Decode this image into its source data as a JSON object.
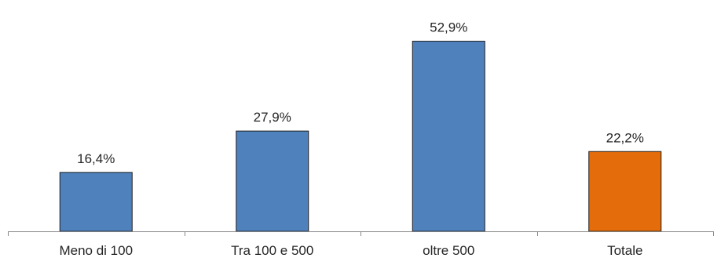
{
  "chart_data": {
    "type": "bar",
    "title": "",
    "xlabel": "",
    "ylabel": "",
    "categories": [
      "Meno di 100",
      "Tra 100 e 500",
      "oltre 500",
      "Totale"
    ],
    "values": [
      16.4,
      27.9,
      52.9,
      22.2
    ],
    "value_labels": [
      "16,4%",
      "27,9%",
      "52,9%",
      "22,2%"
    ],
    "bar_colors": [
      "#4f81bd",
      "#4f81bd",
      "#4f81bd",
      "#e46c0a"
    ],
    "ylim": [
      0,
      60
    ],
    "grid": false,
    "legend": "none"
  }
}
